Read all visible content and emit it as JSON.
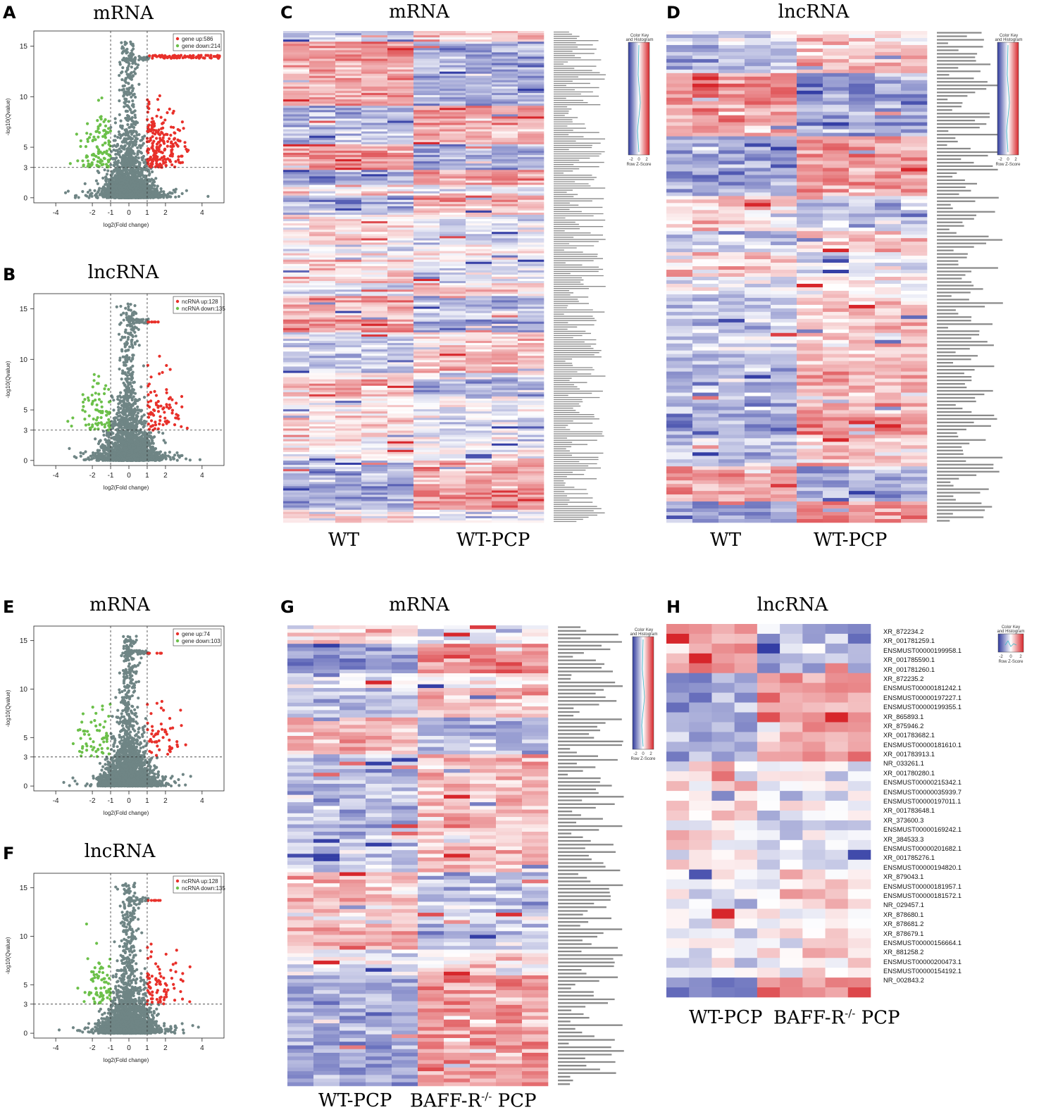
{
  "panels": {
    "A": {
      "letter": "A",
      "title": "mRNA",
      "legend_up": "gene up:586",
      "legend_down": "gene down:214"
    },
    "B": {
      "letter": "B",
      "title": "lncRNA",
      "legend_up": "ncRNA up:128",
      "legend_down": "ncRNA down:135"
    },
    "C": {
      "letter": "C",
      "title": "mRNA",
      "group1": "WT",
      "group2": "WT-PCP"
    },
    "D": {
      "letter": "D",
      "title": "lncRNA",
      "group1": "WT",
      "group2": "WT-PCP"
    },
    "E": {
      "letter": "E",
      "title": "mRNA",
      "legend_up": "gene up:74",
      "legend_down": "gene down:103"
    },
    "F": {
      "letter": "F",
      "title": "lncRNA",
      "legend_up": "ncRNA up:128",
      "legend_down": "ncRNA down:135"
    },
    "G": {
      "letter": "G",
      "title": "mRNA",
      "group1": "WT-PCP",
      "group2_main": "BAFF-R",
      "group2_sup": "-/-",
      "group2_tail": " PCP"
    },
    "H": {
      "letter": "H",
      "title": "lncRNA",
      "group1": "WT-PCP",
      "group2_main": "BAFF-R",
      "group2_sup": "-/-",
      "group2_tail": " PCP",
      "row_labels": [
        "XR_872234.2",
        "XR_001781259.1",
        "ENSMUST00000199958.1",
        "XR_001785590.1",
        "XR_001781260.1",
        "XR_872235.2",
        "ENSMUST00000181242.1",
        "ENSMUST00000197227.1",
        "ENSMUST00000199355.1",
        "XR_865893.1",
        "XR_875946.2",
        "XR_001783682.1",
        "ENSMUST00000181610.1",
        "XR_001783913.1",
        "NR_033261.1",
        "XR_001780280.1",
        "ENSMUST00000215342.1",
        "ENSMUST00000035939.7",
        "ENSMUST00000197011.1",
        "XR_001783648.1",
        "XR_373600.3",
        "ENSMUST00000169242.1",
        "XR_384533.3",
        "ENSMUST00000201682.1",
        "XR_001785276.1",
        "ENSMUST00000194820.1",
        "XR_879043.1",
        "ENSMUST00000181957.1",
        "ENSMUST00000181572.1",
        "NR_029457.1",
        "XR_878680.1",
        "XR_878681.2",
        "XR_878679.1",
        "ENSMUST00000156664.1",
        "XR_881258.2",
        "ENSMUST00000200473.1",
        "ENSMUST00000154192.1",
        "NR_002843.2"
      ]
    }
  },
  "volcano_axes": {
    "xlabel": "log2(Fold change)",
    "ylabel": "-log10(Qvalue)",
    "x_ticks": [
      "-4",
      "-2",
      "-1",
      "0",
      "1",
      "2",
      "4"
    ],
    "y_ticks": [
      "0",
      "3",
      "5",
      "10",
      "15"
    ]
  },
  "color_key": {
    "title_line1": "Color Key",
    "title_line2": "and Histogram",
    "ticks": [
      "-2",
      "0",
      "2"
    ],
    "xlabel": "Row Z-Score"
  },
  "colors": {
    "up": "#e8302a",
    "down": "#6cc04a",
    "ns": "#6f8585",
    "high": "#d7262b",
    "low": "#2f3a9c",
    "mid": "#ffffff"
  },
  "chart_data": [
    {
      "panel": "A",
      "type": "scatter",
      "title": "mRNA",
      "xlabel": "log2(Fold change)",
      "ylabel": "-log10(Qvalue)",
      "xlim": [
        -5.2,
        5.2
      ],
      "ylim": [
        -0.5,
        16.5
      ],
      "thresholds": {
        "x": [
          -1,
          1
        ],
        "y": 3
      },
      "series": [
        {
          "name": "gene up",
          "count": 586
        },
        {
          "name": "gene down",
          "count": 214
        }
      ]
    },
    {
      "panel": "B",
      "type": "scatter",
      "title": "lncRNA",
      "xlabel": "log2(Fold change)",
      "ylabel": "-log10(Qvalue)",
      "xlim": [
        -5.2,
        5.2
      ],
      "ylim": [
        -0.5,
        16.5
      ],
      "thresholds": {
        "x": [
          -1,
          1
        ],
        "y": 3
      },
      "series": [
        {
          "name": "ncRNA up",
          "count": 128
        },
        {
          "name": "ncRNA down",
          "count": 135
        }
      ]
    },
    {
      "panel": "E",
      "type": "scatter",
      "title": "mRNA",
      "xlabel": "log2(Fold change)",
      "ylabel": "-log10(Qvalue)",
      "xlim": [
        -5.2,
        5.2
      ],
      "ylim": [
        -0.5,
        16.5
      ],
      "thresholds": {
        "x": [
          -1,
          1
        ],
        "y": 3
      },
      "series": [
        {
          "name": "gene up",
          "count": 74
        },
        {
          "name": "gene down",
          "count": 103
        }
      ]
    },
    {
      "panel": "F",
      "type": "scatter",
      "title": "lncRNA",
      "xlabel": "log2(Fold change)",
      "ylabel": "-log10(Qvalue)",
      "xlim": [
        -5.2,
        5.2
      ],
      "ylim": [
        -0.5,
        16.5
      ],
      "thresholds": {
        "x": [
          -1,
          1
        ],
        "y": 3
      },
      "series": [
        {
          "name": "ncRNA up",
          "count": 128
        },
        {
          "name": "ncRNA down",
          "count": 135
        }
      ]
    },
    {
      "panel": "C",
      "type": "heatmap",
      "title": "mRNA",
      "columns": 10,
      "groups": [
        "WT",
        "WT-PCP"
      ],
      "scale": "Row Z-Score"
    },
    {
      "panel": "D",
      "type": "heatmap",
      "title": "lncRNA",
      "columns": 10,
      "groups": [
        "WT",
        "WT-PCP"
      ],
      "scale": "Row Z-Score"
    },
    {
      "panel": "G",
      "type": "heatmap",
      "title": "mRNA",
      "columns": 10,
      "groups": [
        "WT-PCP",
        "BAFF-R-/- PCP"
      ],
      "scale": "Row Z-Score"
    },
    {
      "panel": "H",
      "type": "heatmap",
      "title": "lncRNA",
      "columns": 9,
      "rows": 38,
      "groups": [
        "WT-PCP",
        "BAFF-R-/- PCP"
      ],
      "scale": "Row Z-Score"
    }
  ]
}
